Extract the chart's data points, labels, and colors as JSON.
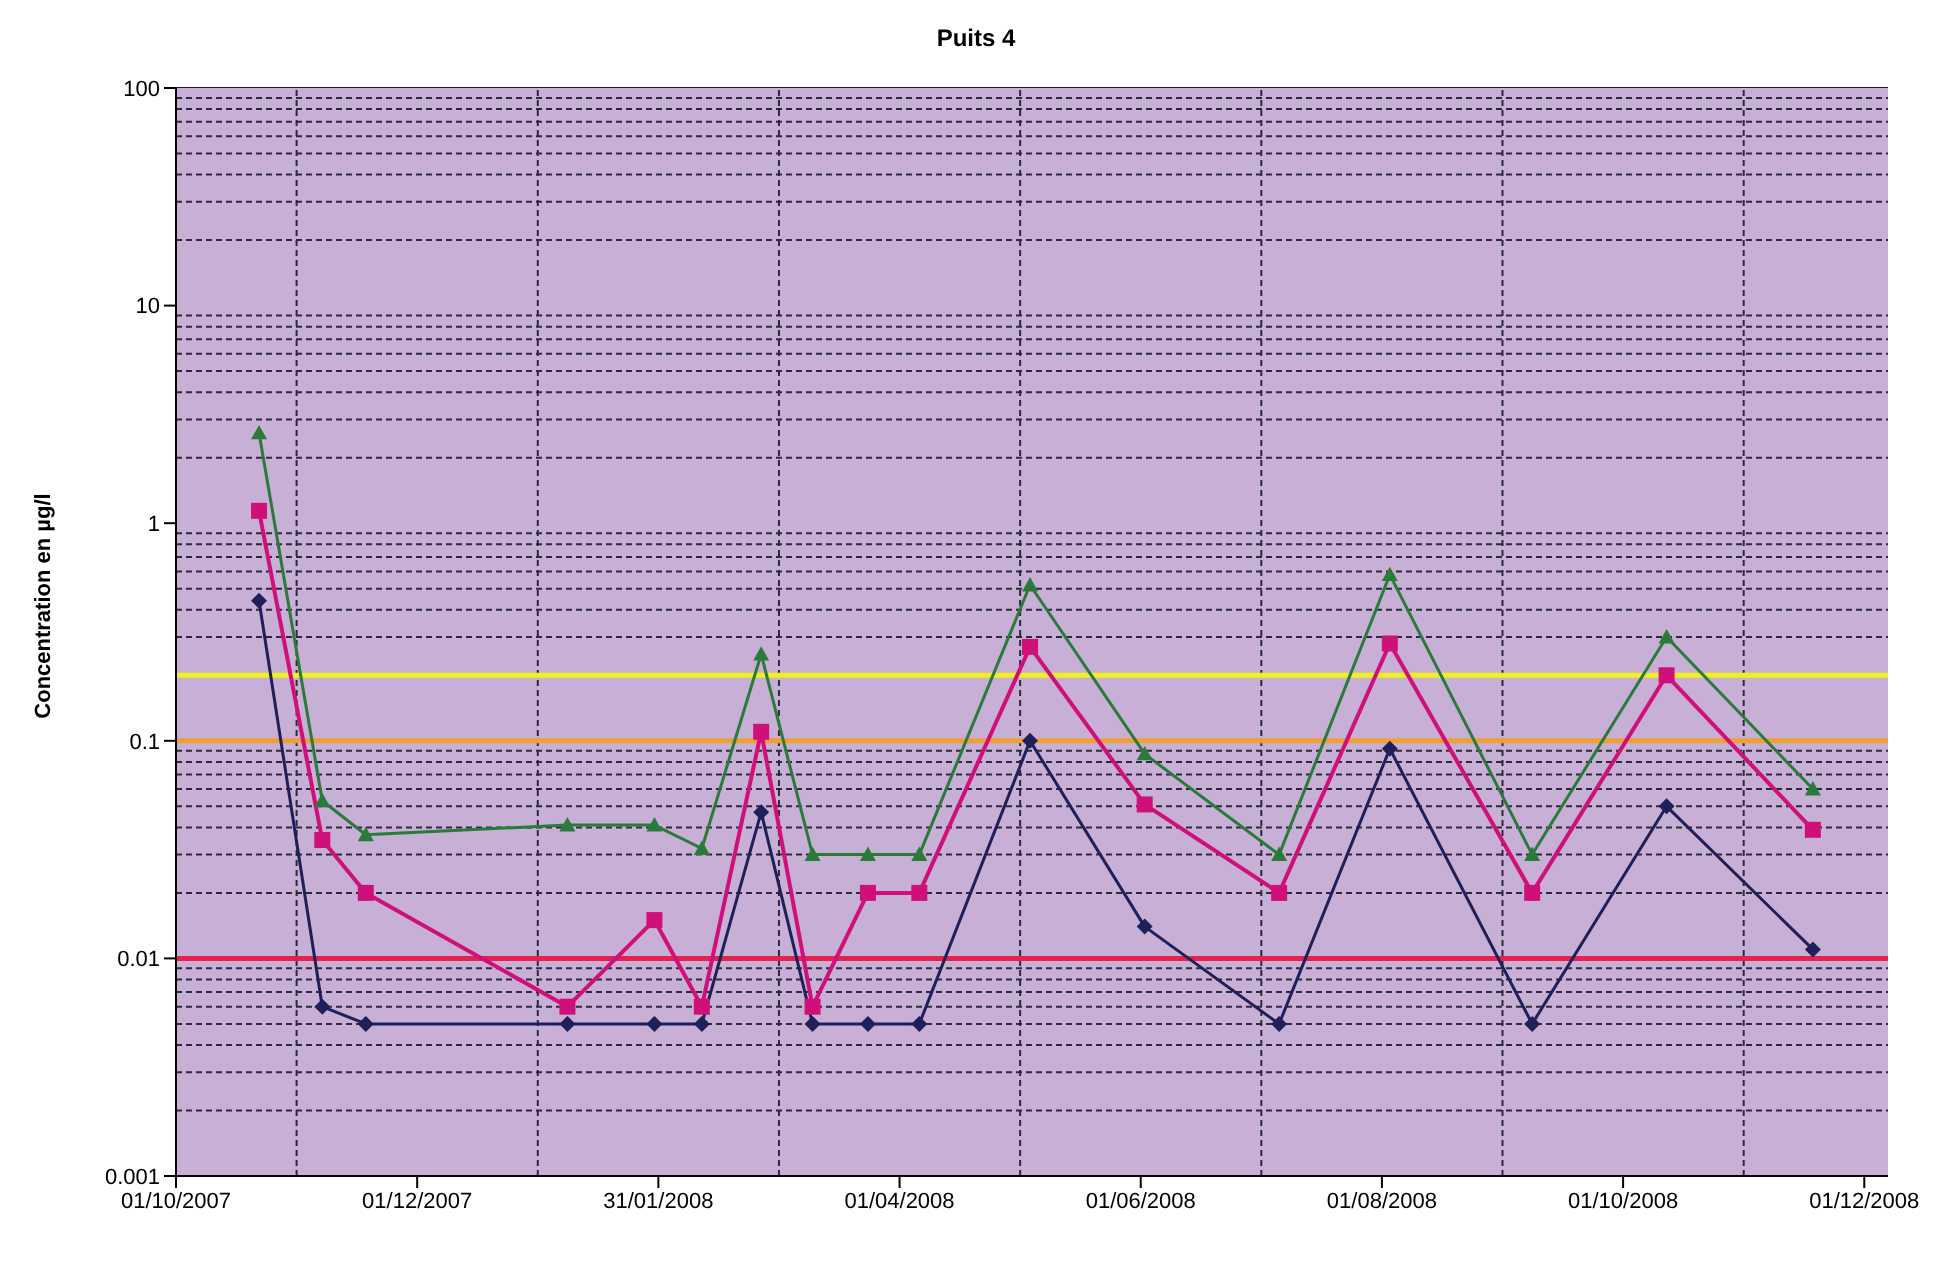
{
  "chart_data": {
    "type": "line",
    "title": "Puits 4",
    "ylabel": "Concentration en µg/l",
    "x": [
      "2007-10-22",
      "2007-11-07",
      "2007-11-18",
      "2008-01-08",
      "2008-01-30",
      "2008-02-11",
      "2008-02-26",
      "2008-03-10",
      "2008-03-24",
      "2008-04-06",
      "2008-05-04",
      "2008-06-02",
      "2008-07-06",
      "2008-08-03",
      "2008-09-08",
      "2008-10-12",
      "2008-11-18"
    ],
    "series": [
      {
        "color": "#1f1f5a",
        "marker": "diamond",
        "values": [
          0.44,
          0.006,
          0.005,
          0.005,
          0.005,
          0.005,
          0.047,
          0.005,
          0.005,
          0.005,
          0.1,
          0.014,
          0.005,
          0.092,
          0.005,
          0.05,
          0.011
        ]
      },
      {
        "color": "#d0107a",
        "marker": "square",
        "values": [
          1.14,
          0.035,
          0.02,
          0.006,
          0.015,
          0.006,
          0.11,
          0.006,
          0.02,
          0.02,
          0.27,
          0.051,
          0.02,
          0.28,
          0.02,
          0.2,
          0.039
        ]
      },
      {
        "color": "#2a7a3a",
        "marker": "triangle",
        "values": [
          2.6,
          0.053,
          0.037,
          0.041,
          0.041,
          0.032,
          0.25,
          0.03,
          0.03,
          0.03,
          0.52,
          0.087,
          0.03,
          0.58,
          0.03,
          0.3,
          0.06
        ]
      }
    ],
    "xlim": [
      "2007-10-01",
      "2008-12-07"
    ],
    "xticks": [
      {
        "value": "2007-10-01",
        "label": "01/10/2007"
      },
      {
        "value": "2007-12-01",
        "label": "01/12/2007"
      },
      {
        "value": "2008-01-31",
        "label": "31/01/2008"
      },
      {
        "value": "2008-04-01",
        "label": "01/04/2008"
      },
      {
        "value": "2008-06-01",
        "label": "01/06/2008"
      },
      {
        "value": "2008-08-01",
        "label": "01/08/2008"
      },
      {
        "value": "2008-10-01",
        "label": "01/10/2008"
      },
      {
        "value": "2008-12-01",
        "label": "01/12/2008"
      }
    ],
    "ylim": [
      0.001,
      100
    ],
    "yticks": [
      0.001,
      0.01,
      0.1,
      1,
      10,
      100
    ],
    "log": "y",
    "grid": true,
    "ref_lines": [
      {
        "axis": "y",
        "value": 0.2,
        "color": "#f0f020"
      },
      {
        "axis": "y",
        "value": 0.1,
        "color": "#f0a030"
      },
      {
        "axis": "y",
        "value": 0.01,
        "color": "#e8204a"
      }
    ]
  }
}
